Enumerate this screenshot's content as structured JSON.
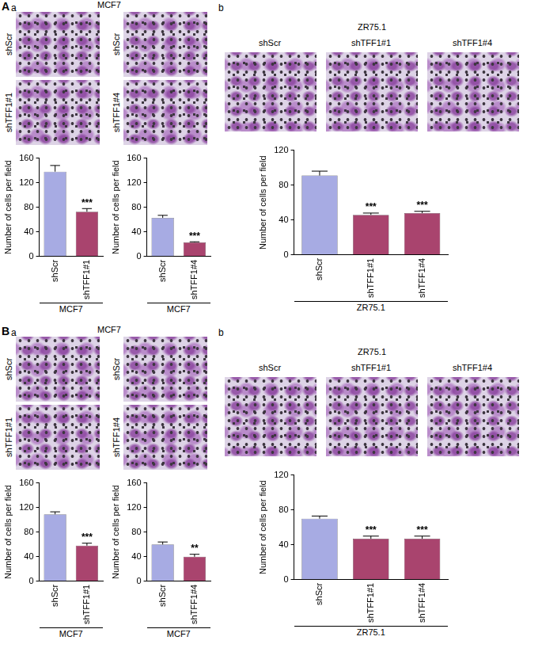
{
  "panels": [
    {
      "letter": "A",
      "parts": [
        {
          "letter": "a",
          "title": "MCF7",
          "image_columns": [
            [
              "shScr",
              "shTFF1#1"
            ],
            [
              "shScr",
              "shTFF1#4"
            ]
          ]
        },
        {
          "letter": "b",
          "title": "ZR75.1",
          "image_row": [
            "shScr",
            "shTFF1#1",
            "shTFF1#4"
          ]
        }
      ]
    },
    {
      "letter": "B",
      "parts": [
        {
          "letter": "a",
          "title": "MCF7",
          "image_columns": [
            [
              "shScr",
              "shTFF1#1"
            ],
            [
              "shScr",
              "shTFF1#4"
            ]
          ]
        },
        {
          "letter": "b",
          "title": "ZR75.1",
          "image_row": [
            "shScr",
            "shTFF1#1",
            "shTFF1#4"
          ]
        }
      ]
    }
  ],
  "chart_data": [
    {
      "type": "bar",
      "categories": [
        "shScr",
        "shTFF1#1"
      ],
      "values": [
        138,
        73
      ],
      "error": [
        10,
        5
      ],
      "significance": [
        null,
        "***"
      ],
      "colors": [
        "#a7abe3",
        "#a9446e"
      ],
      "ylim": [
        0,
        160
      ],
      "yticks": [
        0,
        40,
        80,
        120,
        160
      ],
      "y_label": "Number of cells per field",
      "group_label": "MCF7",
      "grid": false
    },
    {
      "type": "bar",
      "categories": [
        "shScr",
        "shTFF1#4"
      ],
      "values": [
        63,
        23
      ],
      "error": [
        4,
        1
      ],
      "significance": [
        null,
        "***"
      ],
      "colors": [
        "#a7abe3",
        "#a9446e"
      ],
      "ylim": [
        0,
        160
      ],
      "yticks": [
        0,
        40,
        80,
        120,
        160
      ],
      "y_label": "Number of cells per field",
      "group_label": "MCF7",
      "grid": false
    },
    {
      "type": "bar",
      "categories": [
        "shScr",
        "shTFF1#1",
        "shTFF1#4"
      ],
      "values": [
        91,
        46,
        48
      ],
      "error": [
        5,
        2,
        2
      ],
      "significance": [
        null,
        "***",
        "***"
      ],
      "colors": [
        "#a7abe3",
        "#a9446e",
        "#a9446e"
      ],
      "ylim": [
        0,
        120
      ],
      "yticks": [
        0,
        40,
        80,
        120
      ],
      "y_label": "Number of cells per field",
      "group_label": "ZR75.1",
      "grid": false
    },
    {
      "type": "bar",
      "categories": [
        "shScr",
        "shTFF1#1"
      ],
      "values": [
        109,
        58
      ],
      "error": [
        4,
        4
      ],
      "significance": [
        null,
        "***"
      ],
      "colors": [
        "#a7abe3",
        "#a9446e"
      ],
      "ylim": [
        0,
        160
      ],
      "yticks": [
        0,
        40,
        80,
        120,
        160
      ],
      "y_label": "Number of cells per field",
      "group_label": "MCF7",
      "grid": false
    },
    {
      "type": "bar",
      "categories": [
        "shScr",
        "shTFF1#4"
      ],
      "values": [
        60,
        40
      ],
      "error": [
        4,
        4
      ],
      "significance": [
        null,
        "**"
      ],
      "colors": [
        "#a7abe3",
        "#a9446e"
      ],
      "ylim": [
        0,
        160
      ],
      "yticks": [
        0,
        40,
        80,
        120,
        160
      ],
      "y_label": "Number of cells per field",
      "group_label": "MCF7",
      "grid": false
    },
    {
      "type": "bar",
      "categories": [
        "shScr",
        "shTFF1#1",
        "shTFF1#4"
      ],
      "values": [
        70,
        47,
        47
      ],
      "error": [
        3,
        3,
        3
      ],
      "significance": [
        null,
        "***",
        "***"
      ],
      "colors": [
        "#a7abe3",
        "#a9446e",
        "#a9446e"
      ],
      "ylim": [
        0,
        120
      ],
      "yticks": [
        0,
        40,
        80,
        120
      ],
      "y_label": "Number of cells per field",
      "group_label": "ZR75.1",
      "grid": false
    }
  ]
}
